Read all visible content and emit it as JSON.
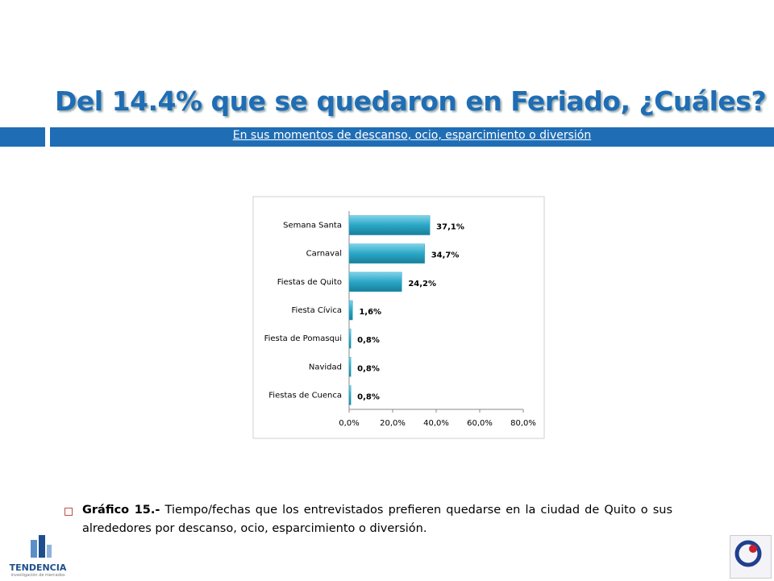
{
  "slide": {
    "title": "Del 14.4% que se quedaron en Feriado, ¿Cuáles?",
    "subtitle": "En sus momentos de descanso, ocio, esparcimiento o diversión",
    "caption_label": "Gráfico 15.-",
    "caption": "Tiempo/fechas que los entrevistados prefieren quedarse en la ciudad de Quito o sus alrededores por descanso, ocio, esparcimiento o diversión.",
    "logo_name": "TENDENCIA",
    "logo_tagline": "investigación de mercados"
  },
  "chart_data": {
    "type": "bar",
    "orientation": "horizontal",
    "color": "#2aa6c6",
    "categories": [
      "Semana Santa",
      "Carnaval",
      "Fiestas de Quito",
      "Fiesta Cívica",
      "Fiesta de Pomasqui",
      "Navidad",
      "Fiestas de Cuenca"
    ],
    "values": [
      37.1,
      34.7,
      24.2,
      1.6,
      0.8,
      0.8,
      0.8
    ],
    "value_labels": [
      "37,1%",
      "34,7%",
      "24,2%",
      "1,6%",
      "0,8%",
      "0,8%",
      "0,8%"
    ],
    "xlim": [
      0,
      80
    ],
    "xticks": [
      {
        "value": 0,
        "label": "0,0%"
      },
      {
        "value": 20,
        "label": "20,0%"
      },
      {
        "value": 40,
        "label": "40,0%"
      },
      {
        "value": 60,
        "label": "60,0%"
      },
      {
        "value": 80,
        "label": "80,0%"
      }
    ]
  }
}
